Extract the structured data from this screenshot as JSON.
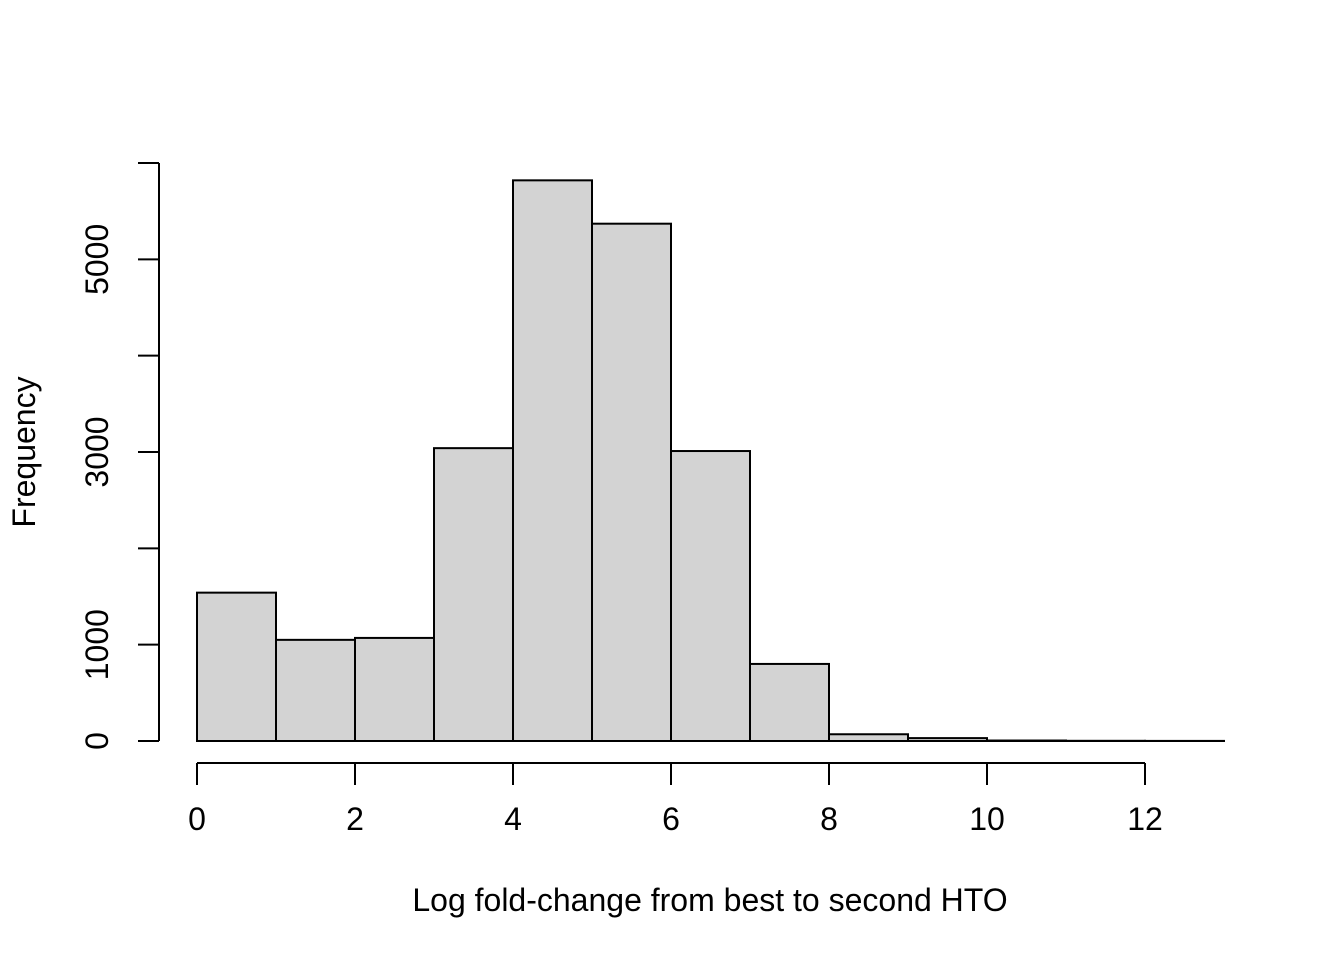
{
  "figure": {
    "background": "#ffffff",
    "text_color": "#000000"
  },
  "chart_data": {
    "type": "bar",
    "subtype": "histogram",
    "xlabel": "Log fold-change from best to second HTO",
    "ylabel": "Frequency",
    "xlim": [
      0,
      13
    ],
    "ylim": [
      0,
      6000
    ],
    "grid": false,
    "bar_fill": "#d3d3d3",
    "bar_stroke": "#000000",
    "axis_color": "#000000",
    "bins": [
      {
        "x0": 0,
        "x1": 1,
        "count": 1540
      },
      {
        "x0": 1,
        "x1": 2,
        "count": 1050
      },
      {
        "x0": 2,
        "x1": 3,
        "count": 1070
      },
      {
        "x0": 3,
        "x1": 4,
        "count": 3040
      },
      {
        "x0": 4,
        "x1": 5,
        "count": 5820
      },
      {
        "x0": 5,
        "x1": 6,
        "count": 5370
      },
      {
        "x0": 6,
        "x1": 7,
        "count": 3010
      },
      {
        "x0": 7,
        "x1": 8,
        "count": 800
      },
      {
        "x0": 8,
        "x1": 9,
        "count": 70
      },
      {
        "x0": 9,
        "x1": 10,
        "count": 30
      },
      {
        "x0": 10,
        "x1": 11,
        "count": 5
      },
      {
        "x0": 11,
        "x1": 12,
        "count": 2
      },
      {
        "x0": 12,
        "x1": 13,
        "count": 1
      }
    ],
    "x_ticks": [
      {
        "value": 0,
        "label": "0"
      },
      {
        "value": 2,
        "label": "2"
      },
      {
        "value": 4,
        "label": "4"
      },
      {
        "value": 6,
        "label": "6"
      },
      {
        "value": 8,
        "label": "8"
      },
      {
        "value": 10,
        "label": "10"
      },
      {
        "value": 12,
        "label": "12"
      }
    ],
    "y_ticks": [
      {
        "value": 0,
        "label": "0"
      },
      {
        "value": 1000,
        "label": "1000"
      },
      {
        "value": 2000,
        "label": ""
      },
      {
        "value": 3000,
        "label": "3000"
      },
      {
        "value": 4000,
        "label": ""
      },
      {
        "value": 5000,
        "label": "5000"
      },
      {
        "value": 6000,
        "label": ""
      }
    ]
  }
}
